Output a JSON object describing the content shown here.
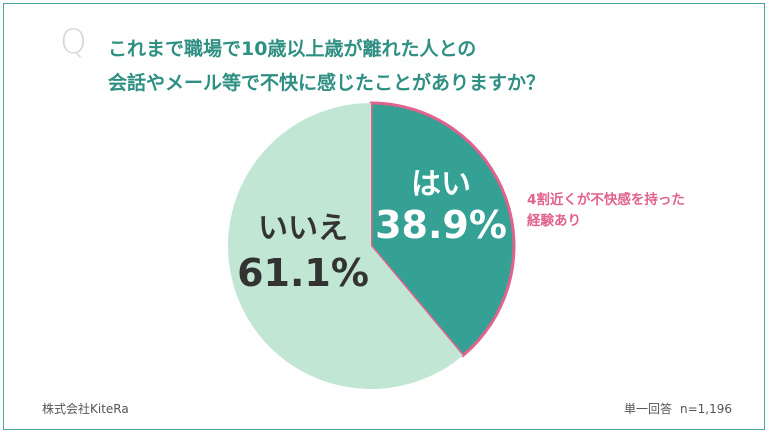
{
  "header": {
    "q_mark": "Q",
    "question_line1": "これまで職場で10歳以上歳が離れた人との",
    "question_line2": "会話やメール等で不快に感じたことがありますか？"
  },
  "chart_data": {
    "type": "pie",
    "title": "",
    "slices": [
      {
        "label": "はい",
        "value": 38.9,
        "value_label": "38.9%",
        "color": "#35a094",
        "highlighted": true
      },
      {
        "label": "いいえ",
        "value": 61.1,
        "value_label": "61.1%",
        "color": "#c1e6d4",
        "highlighted": false
      }
    ],
    "start": "12 o'clock",
    "direction": "clockwise",
    "highlight_stroke_color": "#e0628e"
  },
  "annotation": {
    "line1": "4割近くが不快感を持った",
    "line2": "経験あり"
  },
  "footer": {
    "source": "株式会社KiteRa",
    "answer_type": "単一回答",
    "sample": "n=1,196"
  },
  "colors": {
    "frame": "#4aa89a",
    "question_text": "#2e8f82",
    "annotation_text": "#e0628e"
  }
}
